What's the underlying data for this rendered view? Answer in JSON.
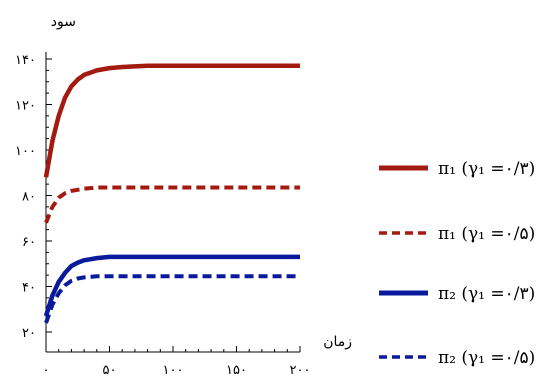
{
  "chart_data": {
    "type": "line",
    "ylabel": "سود",
    "xlabel": "زمان",
    "xlim": [
      0,
      200
    ],
    "ylim": [
      20,
      140
    ],
    "x_ticks": [
      0,
      50,
      100,
      150,
      200
    ],
    "x_tick_labels": [
      "۰",
      "۵۰",
      "۱۰۰",
      "۱۵۰",
      "۲۰۰"
    ],
    "y_ticks": [
      20,
      40,
      60,
      80,
      100,
      120,
      140
    ],
    "y_tick_labels": [
      "۲۰",
      "۴۰",
      "۶۰",
      "۸۰",
      "۱۰۰",
      "۱۲۰",
      "۱۴۰"
    ],
    "grid": false,
    "legend_position": "right",
    "series": [
      {
        "name": "π₁ (γ₁ =۰/۳)",
        "color": "#a31a10",
        "style": "solid",
        "x": [
          0,
          5,
          10,
          15,
          20,
          25,
          30,
          40,
          50,
          60,
          80,
          100,
          150,
          200
        ],
        "y": [
          88,
          104,
          115,
          123,
          128,
          131,
          133,
          135,
          136,
          136.5,
          137,
          137,
          137,
          137
        ]
      },
      {
        "name": "π₁ (γ₁ =۰/۵)",
        "color": "#a31a10",
        "style": "dashed",
        "x": [
          0,
          5,
          10,
          15,
          20,
          25,
          30,
          40,
          50,
          60,
          80,
          100,
          150,
          200
        ],
        "y": [
          68,
          75,
          79,
          81,
          82,
          82.5,
          83,
          83.5,
          83.5,
          83.5,
          83.5,
          83.5,
          83.5,
          83.5
        ]
      },
      {
        "name": "π₂ (γ₁ =۰/۳)",
        "color": "#0a1a9c",
        "style": "solid",
        "x": [
          0,
          5,
          10,
          15,
          20,
          25,
          30,
          40,
          50,
          60,
          80,
          100,
          150,
          200
        ],
        "y": [
          27,
          36,
          42,
          46,
          49,
          50.5,
          51.5,
          52.5,
          53,
          53,
          53,
          53,
          53,
          53
        ]
      },
      {
        "name": "π₂ (γ₁ =۰/۵)",
        "color": "#0a1a9c",
        "style": "dashed",
        "x": [
          0,
          5,
          10,
          15,
          20,
          25,
          30,
          40,
          50,
          60,
          80,
          100,
          150,
          200
        ],
        "y": [
          24,
          32,
          37,
          40.5,
          42.5,
          43.5,
          44,
          44.5,
          44.5,
          44.5,
          44.5,
          44.5,
          44.5,
          44.5
        ]
      }
    ]
  }
}
